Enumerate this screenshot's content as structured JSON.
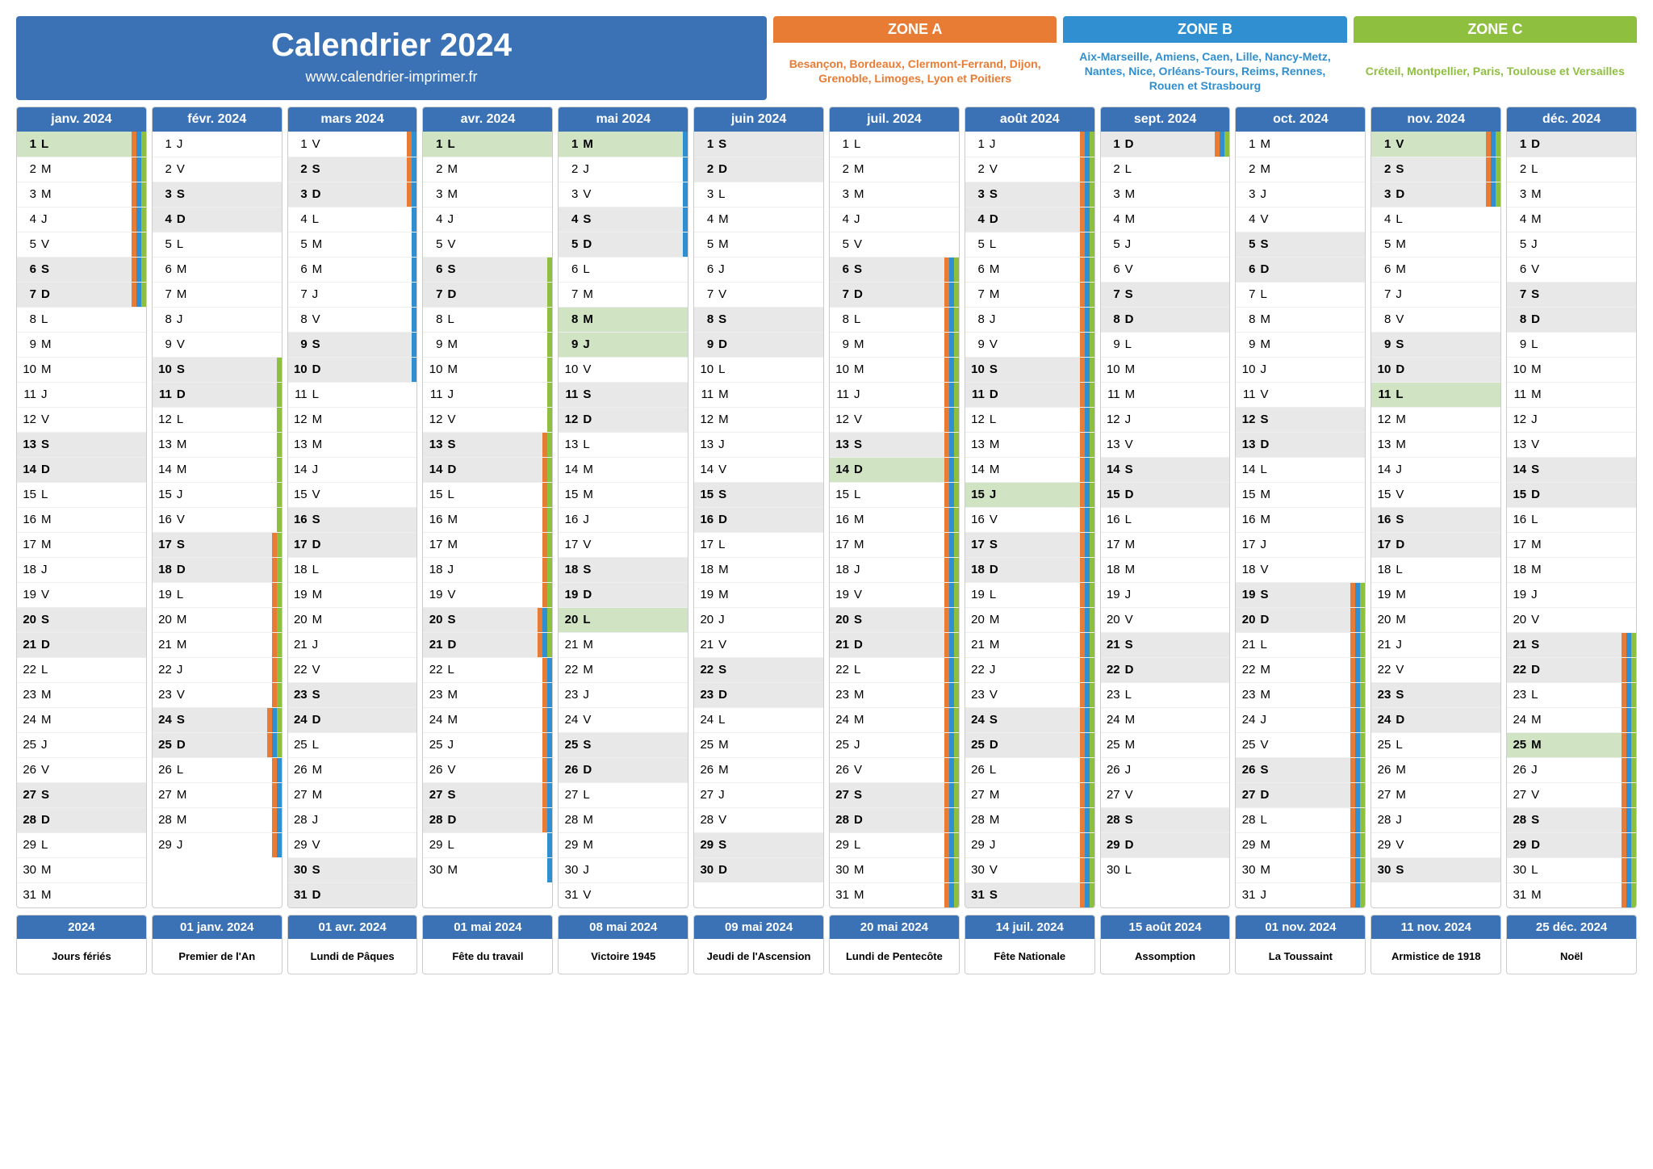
{
  "title": "Calendrier 2024",
  "url": "www.calendrier-imprimer.fr",
  "colors": {
    "primary": "#3b72b6",
    "zoneA": "#e87c34",
    "zoneB": "#2f8fd0",
    "zoneC": "#8fbf3f",
    "weekend": "#e8e8e8",
    "holiday": "#d0e3c2"
  },
  "zones": [
    {
      "label": "ZONE A",
      "color": "#e87c34",
      "text": "Besançon, Bordeaux, Clermont-Ferrand, Dijon, Grenoble, Limoges, Lyon et Poitiers"
    },
    {
      "label": "ZONE B",
      "color": "#2f8fd0",
      "text": "Aix-Marseille, Amiens, Caen, Lille, Nancy-Metz, Nantes, Nice, Orléans-Tours, Reims, Rennes, Rouen et Strasbourg"
    },
    {
      "label": "ZONE C",
      "color": "#8fbf3f",
      "text": "Créteil, Montpellier, Paris, Toulouse et Versailles"
    }
  ],
  "months": [
    {
      "name": "janv. 2024",
      "first_dow": 0,
      "len": 31,
      "holidays": [
        1
      ],
      "vac": {
        "A": [
          [
            1,
            7
          ]
        ],
        "B": [
          [
            1,
            7
          ]
        ],
        "C": [
          [
            1,
            7
          ]
        ]
      }
    },
    {
      "name": "févr. 2024",
      "first_dow": 3,
      "len": 29,
      "holidays": [],
      "vac": {
        "A": [
          [
            17,
            29
          ]
        ],
        "B": [
          [
            24,
            29
          ]
        ],
        "C": [
          [
            10,
            25
          ]
        ]
      }
    },
    {
      "name": "mars 2024",
      "first_dow": 4,
      "len": 31,
      "holidays": [],
      "vac": {
        "A": [
          [
            1,
            3
          ]
        ],
        "B": [
          [
            1,
            10
          ]
        ],
        "C": []
      }
    },
    {
      "name": "avr. 2024",
      "first_dow": 0,
      "len": 30,
      "holidays": [
        1
      ],
      "vac": {
        "A": [
          [
            13,
            28
          ]
        ],
        "B": [
          [
            20,
            30
          ]
        ],
        "C": [
          [
            6,
            21
          ]
        ]
      }
    },
    {
      "name": "mai 2024",
      "first_dow": 2,
      "len": 31,
      "holidays": [
        1,
        8,
        9,
        20
      ],
      "vac": {
        "A": [],
        "B": [
          [
            1,
            5
          ]
        ],
        "C": []
      }
    },
    {
      "name": "juin 2024",
      "first_dow": 5,
      "len": 30,
      "holidays": [],
      "vac": {
        "A": [],
        "B": [],
        "C": []
      }
    },
    {
      "name": "juil. 2024",
      "first_dow": 0,
      "len": 31,
      "holidays": [
        14
      ],
      "vac": {
        "A": [
          [
            6,
            31
          ]
        ],
        "B": [
          [
            6,
            31
          ]
        ],
        "C": [
          [
            6,
            31
          ]
        ]
      }
    },
    {
      "name": "août 2024",
      "first_dow": 3,
      "len": 31,
      "holidays": [
        15
      ],
      "vac": {
        "A": [
          [
            1,
            31
          ]
        ],
        "B": [
          [
            1,
            31
          ]
        ],
        "C": [
          [
            1,
            31
          ]
        ]
      }
    },
    {
      "name": "sept. 2024",
      "first_dow": 6,
      "len": 30,
      "holidays": [],
      "vac": {
        "A": [
          [
            1,
            1
          ]
        ],
        "B": [
          [
            1,
            1
          ]
        ],
        "C": [
          [
            1,
            1
          ]
        ]
      }
    },
    {
      "name": "oct. 2024",
      "first_dow": 1,
      "len": 31,
      "holidays": [],
      "vac": {
        "A": [
          [
            19,
            31
          ]
        ],
        "B": [
          [
            19,
            31
          ]
        ],
        "C": [
          [
            19,
            31
          ]
        ]
      }
    },
    {
      "name": "nov. 2024",
      "first_dow": 4,
      "len": 30,
      "holidays": [
        1,
        11
      ],
      "vac": {
        "A": [
          [
            1,
            3
          ]
        ],
        "B": [
          [
            1,
            3
          ]
        ],
        "C": [
          [
            1,
            3
          ]
        ]
      }
    },
    {
      "name": "déc. 2024",
      "first_dow": 6,
      "len": 31,
      "holidays": [
        25
      ],
      "vac": {
        "A": [
          [
            21,
            31
          ]
        ],
        "B": [
          [
            21,
            31
          ]
        ],
        "C": [
          [
            21,
            31
          ]
        ]
      }
    }
  ],
  "dow_letters": [
    "L",
    "M",
    "M",
    "J",
    "V",
    "S",
    "D"
  ],
  "footer": [
    {
      "hd": "2024",
      "txt": "Jours fériés"
    },
    {
      "hd": "01 janv. 2024",
      "txt": "Premier de l'An"
    },
    {
      "hd": "01 avr. 2024",
      "txt": "Lundi de Pâques"
    },
    {
      "hd": "01 mai 2024",
      "txt": "Fête du travail"
    },
    {
      "hd": "08 mai 2024",
      "txt": "Victoire 1945"
    },
    {
      "hd": "09 mai 2024",
      "txt": "Jeudi de l'Ascension"
    },
    {
      "hd": "20 mai 2024",
      "txt": "Lundi de Pentecôte"
    },
    {
      "hd": "14 juil. 2024",
      "txt": "Fête Nationale"
    },
    {
      "hd": "15 août 2024",
      "txt": "Assomption"
    },
    {
      "hd": "01 nov. 2024",
      "txt": "La Toussaint"
    },
    {
      "hd": "11 nov. 2024",
      "txt": "Armistice de 1918"
    },
    {
      "hd": "25 déc. 2024",
      "txt": "Noël"
    }
  ]
}
